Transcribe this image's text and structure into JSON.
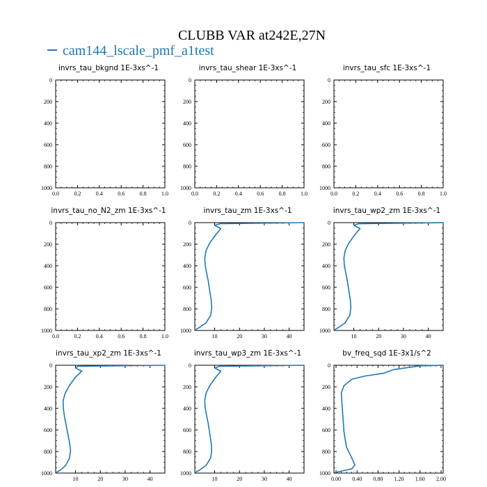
{
  "chart_data": {
    "title": "CLUBB VAR at242E,27N",
    "legend": {
      "label": "cam144_lscale_pmf_a1test",
      "color": "#1f77b4",
      "placement": "top-left"
    },
    "line_color": "#1f77b4",
    "grid": false,
    "panels": [
      {
        "title": "invrs_tau_bkgnd   1E-3xs^-1",
        "type": "line",
        "xlim": [
          0,
          1
        ],
        "ylim": [
          1000,
          0
        ],
        "xticks": [
          0.0,
          0.2,
          0.4,
          0.6,
          0.8,
          1.0
        ],
        "xtick_labels": [
          "0.0",
          "0.2",
          "0.4",
          "0.6",
          "0.8",
          "1.0"
        ],
        "yticks": [
          0,
          200,
          400,
          600,
          800,
          1000
        ],
        "series": [
          {
            "x": [],
            "y": []
          }
        ]
      },
      {
        "title": "invrs_tau_shear   1E-3xs^-1",
        "type": "line",
        "xlim": [
          0,
          1
        ],
        "ylim": [
          1000,
          0
        ],
        "xticks": [
          0.0,
          0.2,
          0.4,
          0.6,
          0.8,
          1.0
        ],
        "xtick_labels": [
          "0.0",
          "0.2",
          "0.4",
          "0.6",
          "0.8",
          "1.0"
        ],
        "yticks": [
          0,
          200,
          400,
          600,
          800,
          1000
        ],
        "series": [
          {
            "x": [],
            "y": []
          }
        ]
      },
      {
        "title": "invrs_tau_sfc   1E-3xs^-1",
        "type": "line",
        "xlim": [
          0,
          1
        ],
        "ylim": [
          1000,
          0
        ],
        "xticks": [
          0.0,
          0.2,
          0.4,
          0.6,
          0.8,
          1.0
        ],
        "xtick_labels": [
          "0.0",
          "0.2",
          "0.4",
          "0.6",
          "0.8",
          "1.0"
        ],
        "yticks": [
          0,
          200,
          400,
          600,
          800,
          1000
        ],
        "series": [
          {
            "x": [],
            "y": []
          }
        ]
      },
      {
        "title": "invrs_tau_no_N2_zm   1E-3xs^-1",
        "type": "line",
        "xlim": [
          0,
          1
        ],
        "ylim": [
          1000,
          0
        ],
        "xticks": [
          0.0,
          0.2,
          0.4,
          0.6,
          0.8,
          1.0
        ],
        "xtick_labels": [
          "0.0",
          "0.2",
          "0.4",
          "0.6",
          "0.8",
          "1.0"
        ],
        "yticks": [
          0,
          200,
          400,
          600,
          800,
          1000
        ],
        "series": [
          {
            "x": [],
            "y": []
          }
        ]
      },
      {
        "title": "invrs_tau_zm   1E-3xs^-1",
        "type": "line",
        "xlim": [
          2,
          46
        ],
        "ylim": [
          1000,
          0
        ],
        "xticks": [
          10,
          20,
          30,
          40
        ],
        "xtick_labels": [
          "10",
          "20",
          "30",
          "40"
        ],
        "yticks": [
          0,
          200,
          400,
          600,
          800,
          1000
        ],
        "series": [
          {
            "x": [
              46,
              12,
              10,
              12.5,
              10.5,
              8,
              6.5,
              6,
              6.2,
              6.8,
              7.4,
              7.8,
              8.2,
              8.6,
              8.8,
              8.4,
              6.5,
              4,
              2.5,
              2.5
            ],
            "y": [
              0,
              10,
              25,
              55,
              110,
              190,
              260,
              330,
              400,
              470,
              540,
              600,
              660,
              720,
              790,
              860,
              930,
              970,
              990,
              1000
            ]
          }
        ]
      },
      {
        "title": "invrs_tau_wp2_zm   1E-3xs^-1",
        "type": "line",
        "xlim": [
          2,
          46
        ],
        "ylim": [
          1000,
          0
        ],
        "xticks": [
          10,
          20,
          30,
          40
        ],
        "xtick_labels": [
          "10",
          "20",
          "30",
          "40"
        ],
        "yticks": [
          0,
          200,
          400,
          600,
          800,
          1000
        ],
        "series": [
          {
            "x": [
              46,
              12,
              10,
              12.5,
              10.5,
              8,
              6.5,
              6,
              6.2,
              6.8,
              7.4,
              7.8,
              8.2,
              8.6,
              8.8,
              8.4,
              6.5,
              4,
              2.5,
              2.5
            ],
            "y": [
              0,
              10,
              25,
              55,
              110,
              190,
              260,
              330,
              400,
              470,
              540,
              600,
              660,
              720,
              790,
              860,
              930,
              970,
              990,
              1000
            ]
          }
        ]
      },
      {
        "title": "invrs_tau_xp2_zm   1E-3xs^-1",
        "type": "line",
        "xlim": [
          2,
          46
        ],
        "ylim": [
          1000,
          0
        ],
        "xticks": [
          10,
          20,
          30,
          40
        ],
        "xtick_labels": [
          "10",
          "20",
          "30",
          "40"
        ],
        "yticks": [
          0,
          200,
          400,
          600,
          800,
          1000
        ],
        "series": [
          {
            "x": [
              46,
              11,
              10,
              12.5,
              10,
              7.5,
              5.8,
              5,
              5.1,
              5.5,
              6.1,
              6.6,
              7.1,
              7.6,
              8,
              7.6,
              6,
              4,
              2.5,
              2.5
            ],
            "y": [
              0,
              10,
              25,
              55,
              110,
              190,
              260,
              330,
              400,
              470,
              540,
              600,
              660,
              720,
              790,
              860,
              930,
              970,
              990,
              1000
            ]
          }
        ]
      },
      {
        "title": "invrs_tau_wp3_zm   1E-3xs^-1",
        "type": "line",
        "xlim": [
          2,
          46
        ],
        "ylim": [
          1000,
          0
        ],
        "xticks": [
          10,
          20,
          30,
          40
        ],
        "xtick_labels": [
          "10",
          "20",
          "30",
          "40"
        ],
        "yticks": [
          0,
          200,
          400,
          600,
          800,
          1000
        ],
        "series": [
          {
            "x": [
              46,
              12,
              10,
              12.5,
              10.5,
              8,
              6.5,
              6,
              6.2,
              6.8,
              7.4,
              7.8,
              8.2,
              8.6,
              8.8,
              8.4,
              6.5,
              4,
              2.5,
              2.5
            ],
            "y": [
              0,
              10,
              25,
              55,
              110,
              190,
              260,
              330,
              400,
              470,
              540,
              600,
              660,
              720,
              790,
              860,
              930,
              970,
              990,
              1000
            ]
          }
        ]
      },
      {
        "title": "bv_freq_sqd   1E-3x1/s^2",
        "type": "line",
        "xlim": [
          -0.04,
          2.04
        ],
        "ylim": [
          1000,
          0
        ],
        "xticks": [
          0.0,
          0.4,
          0.8,
          1.2,
          1.6,
          2.0
        ],
        "xtick_labels": [
          "0.00",
          "0.40",
          "0.80",
          "1.20",
          "1.60",
          "2.00"
        ],
        "yticks": [
          0,
          200,
          400,
          600,
          800,
          1000
        ],
        "series": [
          {
            "x": [
              2.04,
              1.6,
              1.1,
              0.9,
              0.55,
              0.3,
              0.15,
              0.1,
              0.11,
              0.12,
              0.13,
              0.14,
              0.15,
              0.17,
              0.2,
              0.28,
              0.36,
              0.3,
              0.12,
              -0.02,
              -0.02
            ],
            "y": [
              0,
              5,
              40,
              75,
              100,
              130,
              190,
              260,
              330,
              400,
              470,
              540,
              610,
              680,
              760,
              840,
              925,
              960,
              980,
              995,
              1000
            ]
          }
        ]
      }
    ]
  }
}
